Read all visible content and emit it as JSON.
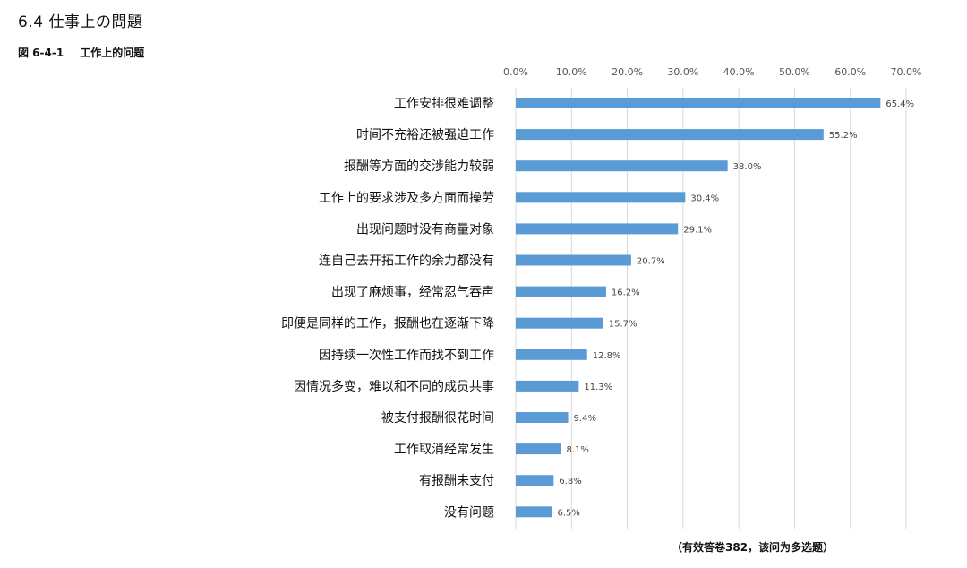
{
  "section": {
    "title": "6.4  仕事上の問題"
  },
  "figure": {
    "number": "図 6-4-1",
    "title": "工作上的问题"
  },
  "footnote": "（有效答卷382，该问为多选题）",
  "colors": {
    "bar": "#5b9bd5",
    "gridline": "#d9d9d9",
    "text": "#111111"
  },
  "chart_data": {
    "type": "bar",
    "orientation": "horizontal",
    "title": "工作上的问题",
    "xlabel": "",
    "ylabel": "",
    "xlim": [
      0,
      70
    ],
    "x_ticks": [
      "0.0%",
      "10.0%",
      "20.0%",
      "30.0%",
      "40.0%",
      "50.0%",
      "60.0%",
      "70.0%"
    ],
    "axis_position": "top",
    "grid": true,
    "legend": "none",
    "categories": [
      "工作安排很难调整",
      "时间不充裕还被强迫工作",
      "报酬等方面的交涉能力较弱",
      "工作上的要求涉及多方面而操劳",
      "出现问题时没有商量对象",
      "连自己去开拓工作的余力都没有",
      "出现了麻烦事，经常忍气吞声",
      "即便是同样的工作，报酬也在逐渐下降",
      "因持续一次性工作而找不到工作",
      "因情况多变，难以和不同的成员共事",
      "被支付报酬很花时间",
      "工作取消经常发生",
      "有报酬未支付",
      "没有问题"
    ],
    "values": [
      65.4,
      55.2,
      38.0,
      30.4,
      29.1,
      20.7,
      16.2,
      15.7,
      12.8,
      11.3,
      9.4,
      8.1,
      6.8,
      6.5
    ],
    "data_labels": [
      "65.4%",
      "55.2%",
      "38.0%",
      "30.4%",
      "29.1%",
      "20.7%",
      "16.2%",
      "15.7%",
      "12.8%",
      "11.3%",
      "9.4%",
      "8.1%",
      "6.8%",
      "6.5%"
    ]
  }
}
